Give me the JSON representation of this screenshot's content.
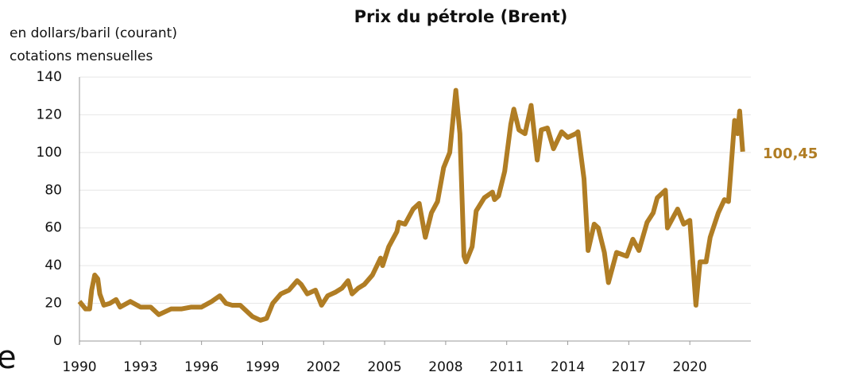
{
  "chart_data": {
    "type": "line",
    "title": "Prix du pétrole (Brent)",
    "subtitle": [
      "en dollars/baril (courant)",
      "cotations mensuelles"
    ],
    "annotation": "100,45",
    "fragment": "e",
    "grid": true,
    "xlim": [
      1990,
      2023
    ],
    "xticks": [
      1990,
      1993,
      1996,
      1999,
      2002,
      2005,
      2008,
      2011,
      2014,
      2017,
      2020
    ],
    "ylim": [
      0,
      140
    ],
    "yticks": [
      0,
      20,
      40,
      60,
      80,
      100,
      120,
      140
    ],
    "series": [
      {
        "name": "Brent",
        "color": "#b07d24",
        "x": [
          1990.0,
          1990.3,
          1990.5,
          1990.6,
          1990.75,
          1990.9,
          1991.0,
          1991.2,
          1991.5,
          1991.8,
          1992.0,
          1992.5,
          1993.0,
          1993.5,
          1993.9,
          1994.5,
          1995.0,
          1995.5,
          1996.0,
          1996.5,
          1996.9,
          1997.2,
          1997.5,
          1997.9,
          1998.5,
          1998.9,
          1999.2,
          1999.5,
          1999.9,
          2000.3,
          2000.7,
          2000.9,
          2001.2,
          2001.6,
          2001.9,
          2002.2,
          2002.6,
          2002.9,
          2003.2,
          2003.4,
          2003.7,
          2004.0,
          2004.4,
          2004.8,
          2004.9,
          2005.2,
          2005.6,
          2005.7,
          2006.0,
          2006.4,
          2006.7,
          2007.0,
          2007.3,
          2007.6,
          2007.9,
          2008.2,
          2008.5,
          2008.7,
          2008.9,
          2009.0,
          2009.3,
          2009.5,
          2009.9,
          2010.3,
          2010.4,
          2010.6,
          2010.9,
          2011.2,
          2011.35,
          2011.6,
          2011.9,
          2012.2,
          2012.5,
          2012.7,
          2013.0,
          2013.3,
          2013.7,
          2014.0,
          2014.4,
          2014.5,
          2014.8,
          2015.0,
          2015.3,
          2015.5,
          2015.8,
          2016.0,
          2016.4,
          2016.9,
          2017.2,
          2017.5,
          2017.9,
          2018.2,
          2018.4,
          2018.8,
          2018.9,
          2019.2,
          2019.4,
          2019.7,
          2020.0,
          2020.3,
          2020.5,
          2020.8,
          2021.0,
          2021.4,
          2021.7,
          2021.9,
          2022.0,
          2022.2,
          2022.35,
          2022.45,
          2022.6
        ],
        "values": [
          21,
          17,
          17,
          27,
          35,
          33,
          25,
          19,
          20,
          22,
          18,
          21,
          18,
          18,
          14,
          17,
          17,
          18,
          18,
          21,
          24,
          20,
          19,
          19,
          13,
          11,
          12,
          20,
          25,
          27,
          32,
          30,
          25,
          27,
          19,
          24,
          26,
          28,
          32,
          25,
          28,
          30,
          35,
          44,
          40,
          50,
          58,
          63,
          62,
          70,
          73,
          55,
          68,
          74,
          92,
          100,
          133,
          110,
          45,
          42,
          50,
          69,
          76,
          79,
          75,
          77,
          90,
          115,
          123,
          112,
          110,
          125,
          96,
          112,
          113,
          102,
          111,
          108,
          110,
          111,
          86,
          48,
          62,
          60,
          47,
          31,
          47,
          45,
          54,
          48,
          63,
          68,
          76,
          80,
          60,
          66,
          70,
          62,
          64,
          19,
          42,
          42,
          55,
          68,
          75,
          74,
          88,
          117,
          110,
          122,
          100.45
        ]
      }
    ]
  }
}
